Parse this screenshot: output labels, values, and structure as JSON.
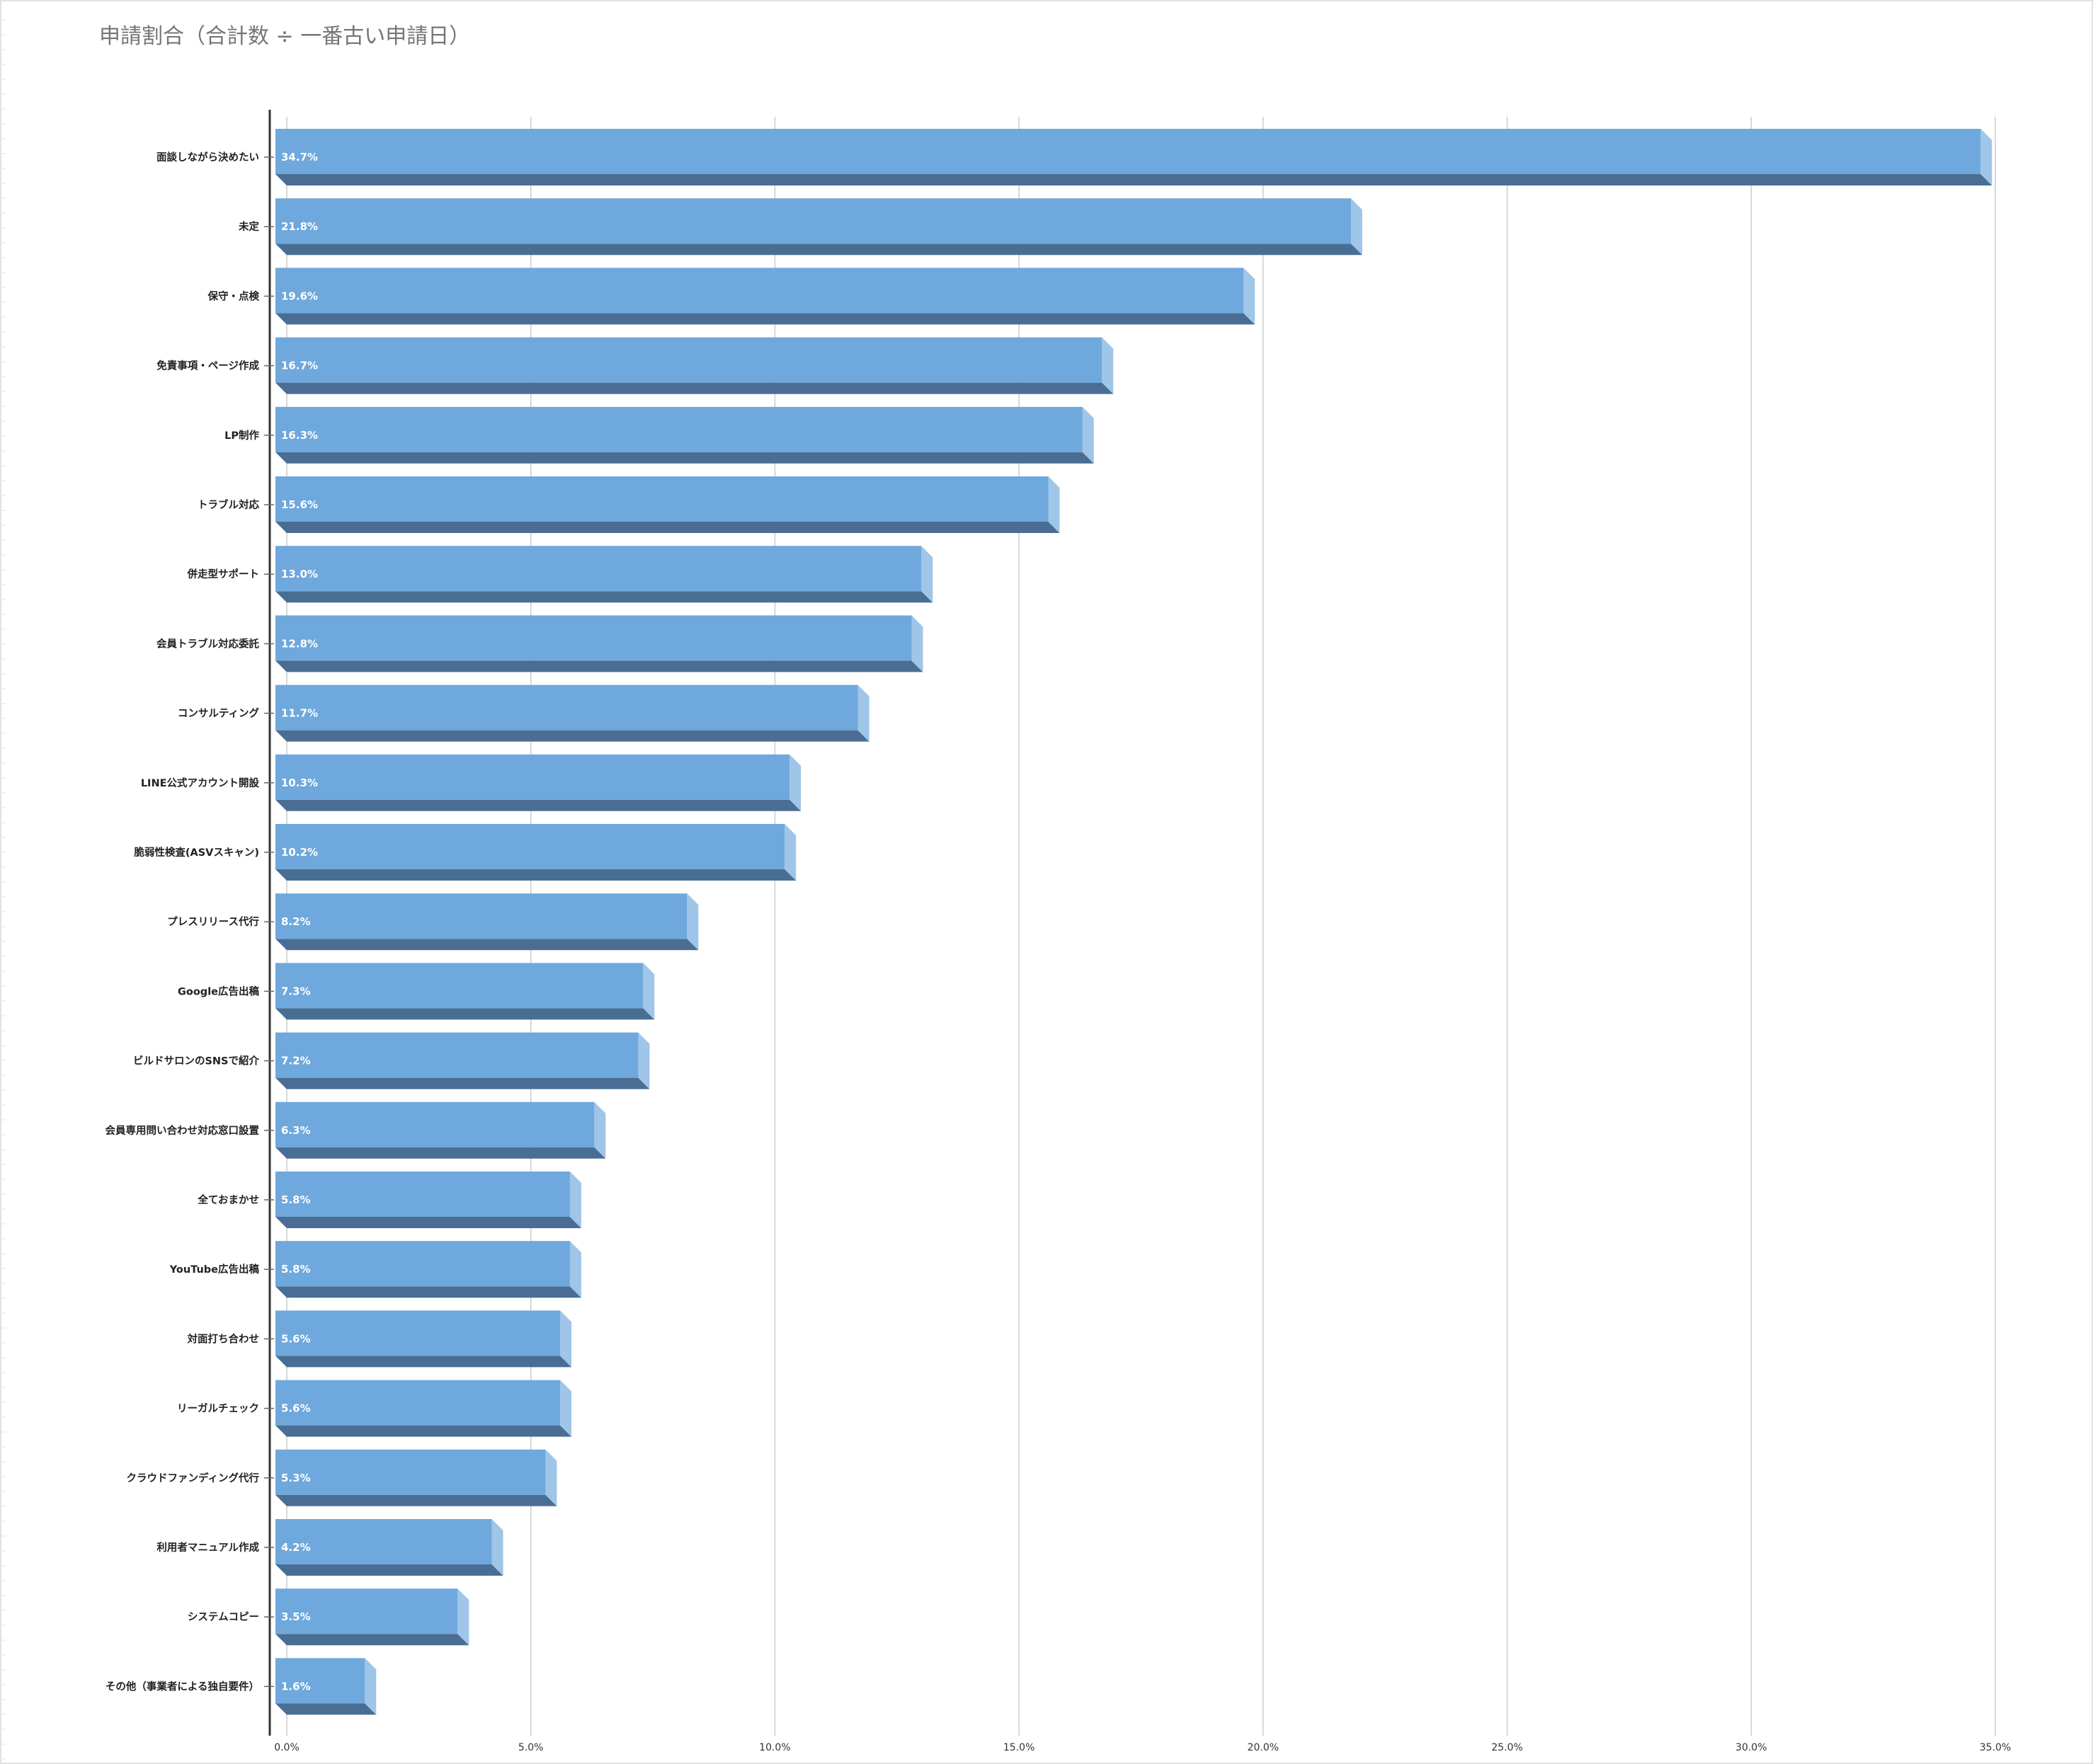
{
  "chart_data": {
    "type": "bar",
    "orientation": "horizontal",
    "style": "3d",
    "title": "申請割合（合計数 ÷ 一番古い申請日）",
    "xlabel": "",
    "ylabel": "",
    "xlim": [
      0,
      35
    ],
    "grid": true,
    "legend": "none",
    "value_format": "percent",
    "x_ticks": [
      "0.0%",
      "5.0%",
      "10.0%",
      "15.0%",
      "20.0%",
      "25.0%",
      "30.0%",
      "35.0%"
    ],
    "categories": [
      "面談しながら決めたい",
      "未定",
      "保守・点検",
      "免責事項・ページ作成",
      "LP制作",
      "トラブル対応",
      "併走型サポート",
      "会員トラブル対応委託",
      "コンサルティング",
      "LINE公式アカウント開設",
      "脆弱性検査(ASVスキャン)",
      "プレスリリース代行",
      "Google広告出稿",
      "ビルドサロンのSNSで紹介",
      "会員専用問い合わせ対応窓口設置",
      "全ておまかせ",
      "YouTube広告出稿",
      "対面打ち合わせ",
      "リーガルチェック",
      "クラウドファンディング代行",
      "利用者マニュアル作成",
      "システムコピー",
      "その他（事業者による独自要件）"
    ],
    "values": [
      34.7,
      21.8,
      19.6,
      16.7,
      16.3,
      15.6,
      13.0,
      12.8,
      11.7,
      10.3,
      10.2,
      8.2,
      7.3,
      7.2,
      6.3,
      5.8,
      5.8,
      5.6,
      5.6,
      5.3,
      4.2,
      3.5,
      1.6
    ],
    "value_labels": [
      "34.7%",
      "21.8%",
      "19.6%",
      "16.7%",
      "16.3%",
      "15.6%",
      "13.0%",
      "12.8%",
      "11.7%",
      "10.3%",
      "10.2%",
      "8.2%",
      "7.3%",
      "7.2%",
      "6.3%",
      "5.8%",
      "5.8%",
      "5.6%",
      "5.6%",
      "5.3%",
      "4.2%",
      "3.5%",
      "1.6%"
    ],
    "colors": {
      "bar_front": "#6fa8dc",
      "bar_side": "#9fc5e8",
      "bar_bottom": "#4a6e93",
      "grid": "#cccccc",
      "axis": "#333333"
    }
  }
}
